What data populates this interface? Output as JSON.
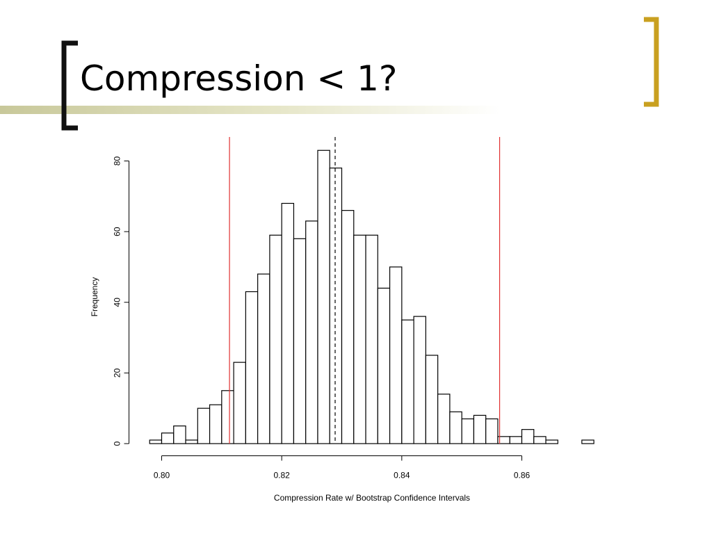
{
  "slide": {
    "title": "Compression < 1?",
    "colors": {
      "accent_gold": "#c9a020",
      "bracket_dark": "#111111",
      "band_olive": "#c8c89a"
    }
  },
  "chart_data": {
    "type": "bar",
    "subtype": "histogram",
    "title": "",
    "xlabel": "Compression Rate w/ Bootstrap Confidence Intervals",
    "ylabel": "Frequency",
    "bin_start": 0.798,
    "bin_width": 0.002,
    "values": [
      1,
      3,
      5,
      1,
      10,
      11,
      15,
      23,
      43,
      48,
      59,
      68,
      58,
      63,
      83,
      78,
      66,
      59,
      59,
      44,
      50,
      35,
      36,
      25,
      14,
      9,
      7,
      8,
      7,
      2,
      2,
      4,
      2,
      1,
      0,
      0,
      1
    ],
    "xlim": [
      0.798,
      0.872
    ],
    "ylim": [
      0,
      85
    ],
    "xticks": [
      "0.80",
      "0.82",
      "0.84",
      "0.86"
    ],
    "yticks": [
      "0",
      "20",
      "40",
      "60",
      "80"
    ],
    "vlines": [
      {
        "x": 0.8113,
        "color": "#e03030",
        "style": "solid",
        "role": "lower confidence bound"
      },
      {
        "x": 0.8289,
        "color": "#000000",
        "style": "dashed",
        "role": "point estimate"
      },
      {
        "x": 0.8563,
        "color": "#e03030",
        "style": "solid",
        "role": "upper confidence bound"
      }
    ],
    "grid": false,
    "bar_fill": "#ffffff",
    "bar_stroke": "#000000"
  }
}
